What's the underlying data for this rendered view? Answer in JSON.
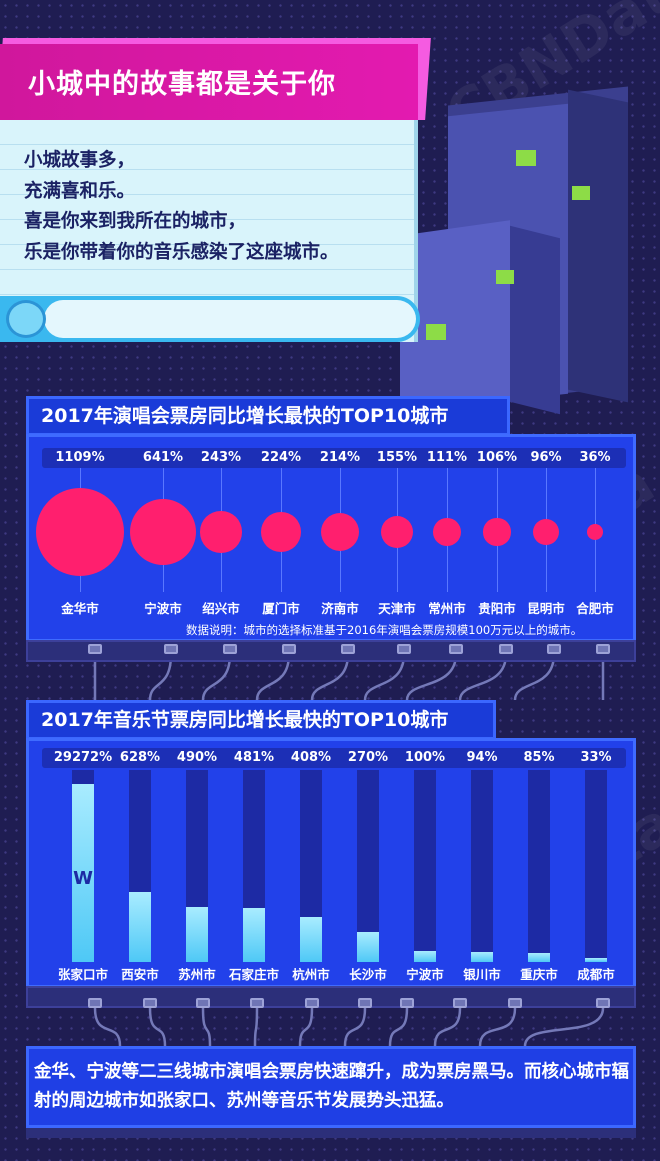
{
  "header": {
    "title": "小城中的故事都是关于你"
  },
  "story": {
    "lines": [
      "小城故事多，",
      "充满喜和乐。",
      "喜是你来到我所在的城市，",
      "乐是你带着你的音乐感染了这座城市。"
    ]
  },
  "concert": {
    "title": "2017年演唱会票房同比增长最快的TOP10城市",
    "note": "数据说明：城市的选择标准基于2016年演唱会票房规模100万元以上的城市。"
  },
  "festival": {
    "title": "2017年音乐节票房同比增长最快的TOP10城市",
    "break_mark": "W"
  },
  "summary": {
    "text": "金华、宁波等二三线城市演唱会票房快速蹿升，成为票房黑马。而核心城市辐射的周边城市如张家口、苏州等音乐节发展势头迅猛。"
  },
  "colors": {
    "background": "#1f1d52",
    "header_magenta": "#d0179c",
    "panel_blue": "#2241ea",
    "bubble_pink": "#ff1f6e",
    "bar_cyan": "#4ec8f6",
    "window_green": "#8ddc47"
  },
  "chart_data": [
    {
      "type": "scatter",
      "title": "2017年演唱会票房同比增长最快的TOP10城市",
      "encoding": "bubble size = growth",
      "categories": [
        "金华市",
        "宁波市",
        "绍兴市",
        "厦门市",
        "济南市",
        "天津市",
        "常州市",
        "贵阳市",
        "昆明市",
        "合肥市"
      ],
      "labels": [
        "1109%",
        "641%",
        "243%",
        "224%",
        "214%",
        "155%",
        "111%",
        "106%",
        "96%",
        "36%"
      ],
      "values": [
        1109,
        641,
        243,
        224,
        214,
        155,
        111,
        106,
        96,
        36
      ],
      "unit": "%"
    },
    {
      "type": "bar",
      "title": "2017年音乐节票房同比增长最快的TOP10城市",
      "categories": [
        "张家口市",
        "西安市",
        "苏州市",
        "石家庄市",
        "杭州市",
        "长沙市",
        "宁波市",
        "银川市",
        "重庆市",
        "成都市"
      ],
      "labels": [
        "29272%",
        "628%",
        "490%",
        "481%",
        "408%",
        "270%",
        "100%",
        "94%",
        "85%",
        "33%"
      ],
      "values": [
        29272,
        628,
        490,
        481,
        408,
        270,
        100,
        94,
        85,
        33
      ],
      "unit": "%",
      "broken_axis": true
    }
  ]
}
